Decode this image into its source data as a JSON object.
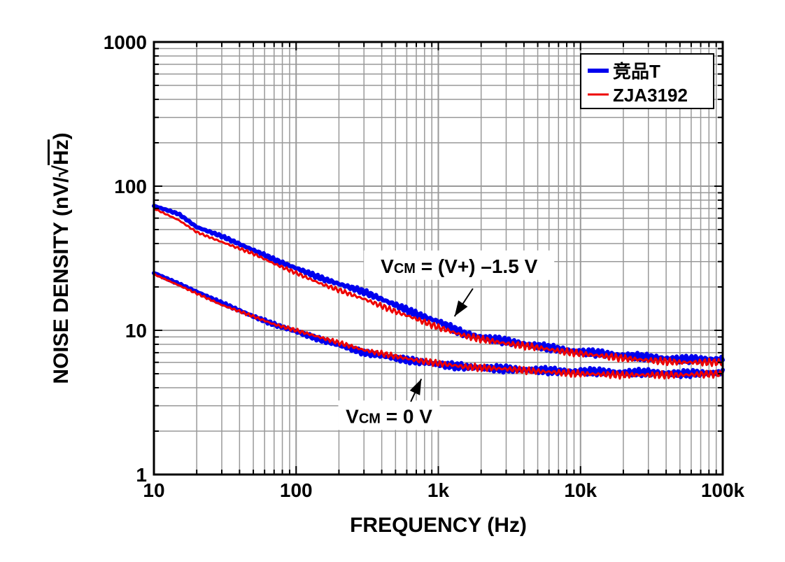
{
  "chart_data": {
    "type": "line",
    "xlabel": "FREQUENCY (Hz)",
    "ylabel_main": "NOISE DENSITY (nV/",
    "ylabel_sqrt": "√",
    "ylabel_radicand": "Hz",
    "ylabel_close": ")",
    "xscale": "log",
    "yscale": "log",
    "xlim": [
      10,
      100000
    ],
    "ylim": [
      1,
      1000
    ],
    "grid": true,
    "legend_position": "top-right",
    "x_ticks": [
      {
        "value": 10,
        "label": "10"
      },
      {
        "value": 100,
        "label": "100"
      },
      {
        "value": 1000,
        "label": "1k"
      },
      {
        "value": 10000,
        "label": "10k"
      },
      {
        "value": 100000,
        "label": "100k"
      }
    ],
    "y_ticks": [
      {
        "value": 1,
        "label": "1"
      },
      {
        "value": 10,
        "label": "10"
      },
      {
        "value": 100,
        "label": "100"
      },
      {
        "value": 1000,
        "label": "1000"
      }
    ],
    "series": [
      {
        "name": "竞品T",
        "color": "#0000ee",
        "condition": "Vcm = (V+) - 1.5 V",
        "x": [
          10,
          15,
          20,
          30,
          50,
          70,
          100,
          150,
          200,
          300,
          500,
          700,
          1000,
          1500,
          2000,
          3000,
          5000,
          7000,
          10000,
          20000,
          30000,
          50000,
          100000
        ],
        "y": [
          73,
          64,
          52,
          45,
          36,
          31,
          27,
          23,
          21,
          18.5,
          15,
          13,
          11.5,
          9.5,
          9,
          8.4,
          7.8,
          7.4,
          7.1,
          6.7,
          6.5,
          6.3,
          6.3
        ]
      },
      {
        "name": "ZJA3192",
        "color": "#ee0000",
        "condition": "Vcm = (V+) - 1.5 V",
        "x": [
          10,
          15,
          20,
          30,
          50,
          70,
          100,
          150,
          200,
          300,
          500,
          700,
          1000,
          1500,
          2000,
          3000,
          5000,
          7000,
          10000,
          20000,
          30000,
          50000,
          100000
        ],
        "y": [
          70,
          58,
          48,
          41,
          34,
          29,
          25,
          21,
          19,
          16.5,
          13.5,
          12,
          10.5,
          9.2,
          8.7,
          8.1,
          7.6,
          7.2,
          6.9,
          6.4,
          6.2,
          6.0,
          6.0
        ]
      },
      {
        "name": "竞品T",
        "color": "#0000ee",
        "condition": "Vcm = 0 V",
        "x": [
          10,
          15,
          20,
          30,
          50,
          70,
          100,
          150,
          200,
          300,
          500,
          700,
          1000,
          1500,
          2000,
          3000,
          5000,
          7000,
          10000,
          20000,
          30000,
          50000,
          100000
        ],
        "y": [
          25,
          21,
          18.5,
          15.5,
          12.5,
          11,
          9.8,
          8.6,
          7.9,
          7,
          6.4,
          6.1,
          5.8,
          5.6,
          5.5,
          5.4,
          5.3,
          5.2,
          5.2,
          5.1,
          5.1,
          5.0,
          5.1
        ]
      },
      {
        "name": "ZJA3192",
        "color": "#ee0000",
        "condition": "Vcm = 0 V",
        "x": [
          10,
          15,
          20,
          30,
          50,
          70,
          100,
          150,
          200,
          300,
          500,
          700,
          1000,
          1500,
          2000,
          3000,
          5000,
          7000,
          10000,
          20000,
          30000,
          50000,
          100000
        ],
        "y": [
          24.5,
          20.5,
          18,
          15,
          12.5,
          11,
          10,
          8.9,
          8.2,
          7.3,
          6.6,
          6.2,
          5.9,
          5.6,
          5.5,
          5.4,
          5.2,
          5.1,
          5.0,
          4.9,
          4.9,
          4.9,
          5.0
        ]
      }
    ],
    "legend": [
      {
        "label": "竞品T",
        "color": "#0000ee"
      },
      {
        "label": "ZJA3192",
        "color": "#ee0000"
      }
    ],
    "annotations": [
      {
        "label_main": "V",
        "label_sub": "CM",
        "label_rest": " = (V+) –1.5 V",
        "text_x": 1400,
        "text_y": 28,
        "arrow_from_x": 1750,
        "arrow_from_y": 19.5,
        "arrow_to_x": 1300,
        "arrow_to_y": 12.5
      },
      {
        "label_main": "V",
        "label_sub": "CM",
        "label_rest": " = 0 V",
        "text_x": 450,
        "text_y": 2.55,
        "arrow_from_x": 640,
        "arrow_from_y": 3.2,
        "arrow_to_x": 760,
        "arrow_to_y": 4.6
      }
    ]
  }
}
